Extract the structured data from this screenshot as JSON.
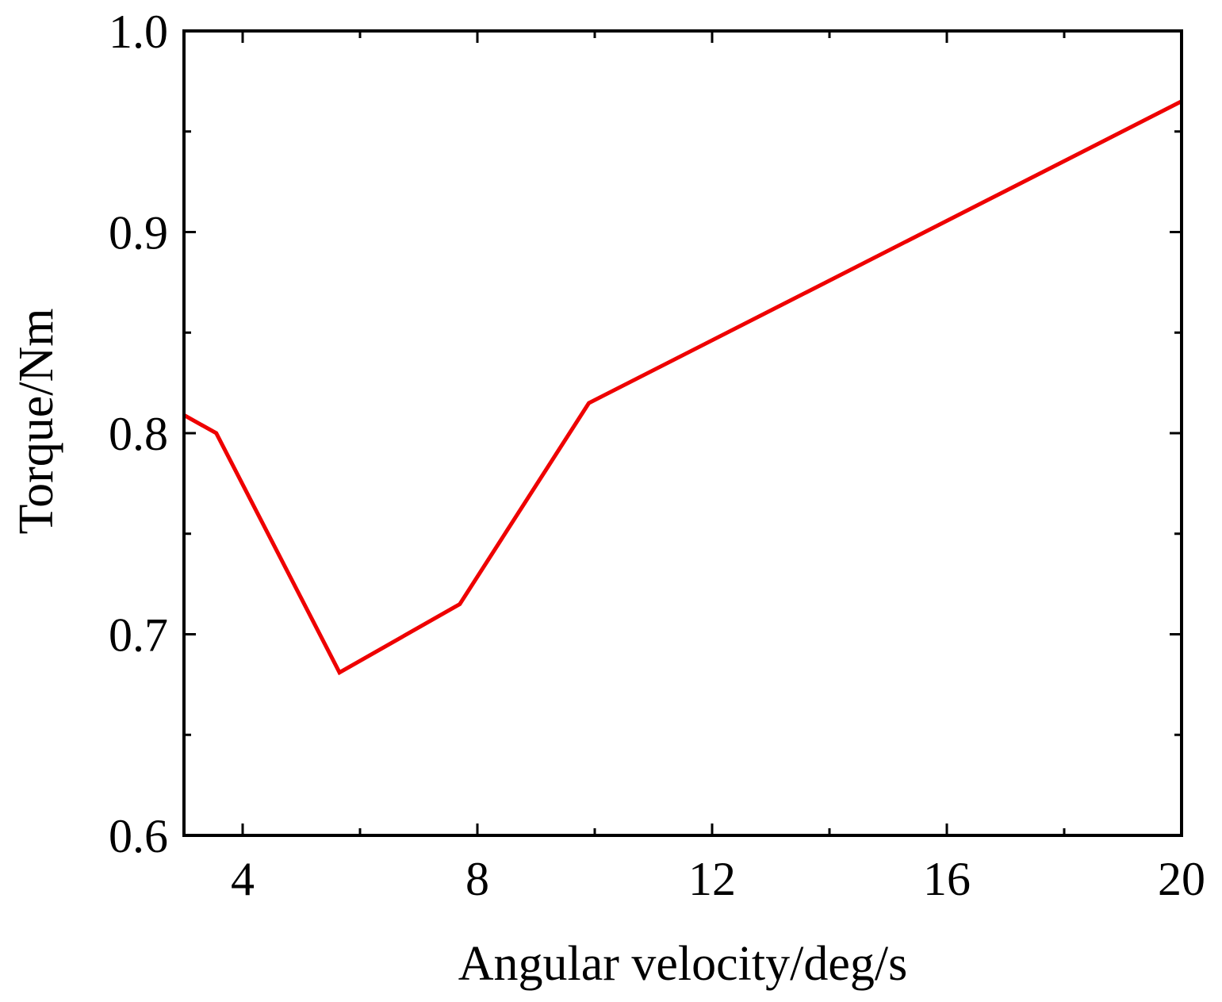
{
  "chart_data": {
    "type": "line",
    "title": "",
    "xlabel": "Angular velocity/deg/s",
    "ylabel": "Torque/Nm",
    "xlim": [
      3,
      20
    ],
    "ylim": [
      0.6,
      1.0
    ],
    "x_major_ticks": [
      4,
      8,
      12,
      16,
      20
    ],
    "x_tick_labels": [
      "4",
      "8",
      "12",
      "16",
      "20"
    ],
    "x_minor_ticks": [
      6,
      10,
      14,
      18
    ],
    "y_major_ticks": [
      0.6,
      0.7,
      0.8,
      0.9,
      1.0
    ],
    "y_tick_labels": [
      "0.6",
      "0.7",
      "0.8",
      "0.9",
      "1.0"
    ],
    "y_minor_ticks": [
      0.65,
      0.75,
      0.85,
      0.95
    ],
    "grid": false,
    "legend": "none",
    "series": [
      {
        "color": "#ee0000",
        "x": [
          3.0,
          3.55,
          5.65,
          7.7,
          9.9,
          20.0
        ],
        "y": [
          0.809,
          0.8,
          0.681,
          0.715,
          0.815,
          0.965
        ]
      }
    ]
  }
}
